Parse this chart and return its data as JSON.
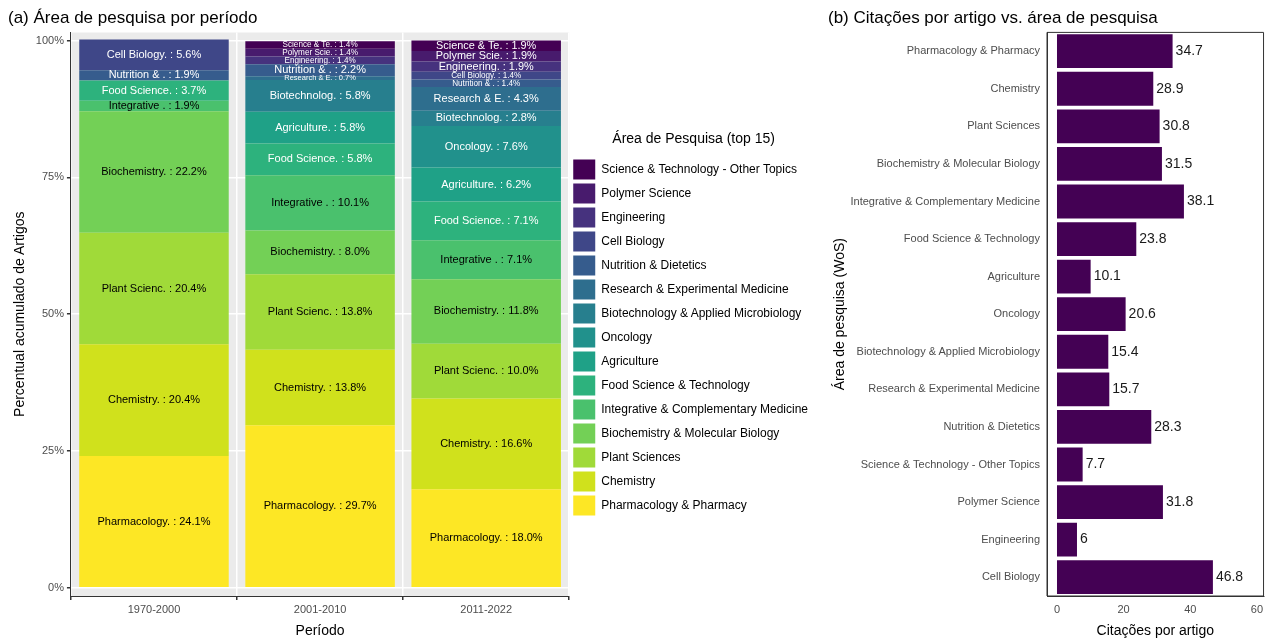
{
  "chart_data": [
    {
      "type": "bar",
      "title": "(a) Área de pesquisa por período",
      "xlabel": "Período",
      "ylabel": "Percentual acumulado de Artigos",
      "legend_title": "Área de Pesquisa (top 15)",
      "legend": "right",
      "grid": true,
      "stacked": true,
      "categories": [
        "1970-2000",
        "2001-2010",
        "2011-2022"
      ],
      "ylim": [
        -1.5,
        101.5
      ],
      "yticks": [
        {
          "value": 0,
          "label": "0%"
        },
        {
          "value": 25,
          "label": "25%"
        },
        {
          "value": 50,
          "label": "50%"
        },
        {
          "value": 75,
          "label": "75%"
        },
        {
          "value": 100,
          "label": "100%"
        }
      ],
      "series": [
        {
          "name": "Pharmacology & Pharmacy",
          "color": "#fde725",
          "values": [
            24.1,
            29.7,
            18.0
          ],
          "value_labels": [
            "Pharmacology. : 24.1%",
            "Pharmacology. : 29.7%",
            "Pharmacology. : 18.0%"
          ]
        },
        {
          "name": "Chemistry",
          "color": "#d0e11c",
          "values": [
            20.4,
            13.8,
            16.6
          ],
          "value_labels": [
            "Chemistry. : 20.4%",
            "Chemistry. : 13.8%",
            "Chemistry. : 16.6%"
          ]
        },
        {
          "name": "Plant Sciences",
          "color": "#a0da39",
          "values": [
            20.4,
            13.8,
            10.0
          ],
          "value_labels": [
            "Plant Scienc. : 20.4%",
            "Plant Scienc. : 13.8%",
            "Plant Scienc. : 10.0%"
          ]
        },
        {
          "name": "Biochemistry & Molecular Biology",
          "color": "#73d056",
          "values": [
            22.2,
            8.0,
            11.8
          ],
          "value_labels": [
            "Biochemistry. : 22.2%",
            "Biochemistry. : 8.0%",
            "Biochemistry. : 11.8%"
          ]
        },
        {
          "name": "Integrative & Complementary Medicine",
          "color": "#4ac16d",
          "values": [
            1.9,
            10.1,
            7.1
          ],
          "value_labels": [
            "Integrative . : 1.9%",
            "Integrative . : 10.1%",
            "Integrative . : 7.1%"
          ]
        },
        {
          "name": "Food Science & Technology",
          "color": "#2db27d",
          "values": [
            3.7,
            5.8,
            7.1
          ],
          "value_labels": [
            "Food Science. : 3.7%",
            "Food Science. : 5.8%",
            "Food Science. : 7.1%"
          ]
        },
        {
          "name": "Agriculture",
          "color": "#1fa187",
          "values": [
            null,
            5.8,
            6.2
          ],
          "value_labels": [
            null,
            "Agriculture. : 5.8%",
            "Agriculture. : 6.2%"
          ]
        },
        {
          "name": "Oncology",
          "color": "#21918c",
          "values": [
            null,
            null,
            7.6
          ],
          "value_labels": [
            null,
            null,
            "Oncology. : 7.6%"
          ]
        },
        {
          "name": "Biotechnology & Applied Microbiology",
          "color": "#277f8e",
          "values": [
            null,
            5.8,
            2.8
          ],
          "value_labels": [
            null,
            "Biotechnolog. : 5.8%",
            "Biotechnolog. : 2.8%"
          ]
        },
        {
          "name": "Research & Experimental Medicine",
          "color": "#2e6e8e",
          "values": [
            null,
            0.7,
            4.3
          ],
          "value_labels": [
            null,
            "Research & E. : 0.7%",
            "Research & E. : 4.3%"
          ]
        },
        {
          "name": "Nutrition & Dietetics",
          "color": "#365c8d",
          "values": [
            1.9,
            2.2,
            1.4
          ],
          "value_labels": [
            "Nutrition & . : 1.9%",
            "Nutrition & . : 2.2%",
            "Nutrition & . : 1.4%"
          ]
        },
        {
          "name": "Cell Biology",
          "color": "#3f4788",
          "values": [
            5.6,
            null,
            1.4
          ],
          "value_labels": [
            "Cell Biology. : 5.6%",
            null,
            "Cell Biology. : 1.4%"
          ]
        },
        {
          "name": "Engineering",
          "color": "#46327e",
          "values": [
            null,
            1.4,
            1.9
          ],
          "value_labels": [
            null,
            "Engineering. : 1.4%",
            "Engineering. : 1.9%"
          ]
        },
        {
          "name": "Polymer Science",
          "color": "#481b6d",
          "values": [
            null,
            1.4,
            1.9
          ],
          "value_labels": [
            null,
            "Polymer Scie. : 1.4%",
            "Polymer Scie. : 1.9%"
          ]
        },
        {
          "name": "Science & Technology - Other Topics",
          "color": "#440154",
          "values": [
            null,
            1.4,
            1.9
          ],
          "value_labels": [
            null,
            "Science & Te. : 1.4%",
            "Science & Te. : 1.9%"
          ]
        }
      ]
    },
    {
      "type": "bar",
      "title": "(b) Citações por artigo vs. área de pesquisa",
      "xlabel": "Citações por artigo",
      "ylabel": "Área de pesquisa (WoS)",
      "orientation": "horizontal",
      "data_labels": true,
      "categories": [
        "Pharmacology & Pharmacy",
        "Chemistry",
        "Plant Sciences",
        "Biochemistry & Molecular Biology",
        "Integrative & Complementary Medicine",
        "Food Science & Technology",
        "Agriculture",
        "Oncology",
        "Biotechnology & Applied Microbiology",
        "Research & Experimental Medicine",
        "Nutrition & Dietetics",
        "Science & Technology - Other Topics",
        "Polymer Science",
        "Engineering",
        "Cell Biology"
      ],
      "values": [
        34.7,
        28.9,
        30.8,
        31.5,
        38.1,
        23.8,
        10.1,
        20.6,
        15.4,
        15.7,
        28.3,
        7.7,
        31.8,
        6,
        46.8
      ],
      "color": "#440154",
      "xlim": [
        -3,
        62
      ],
      "xticks": [
        0,
        20,
        40,
        60
      ]
    }
  ]
}
